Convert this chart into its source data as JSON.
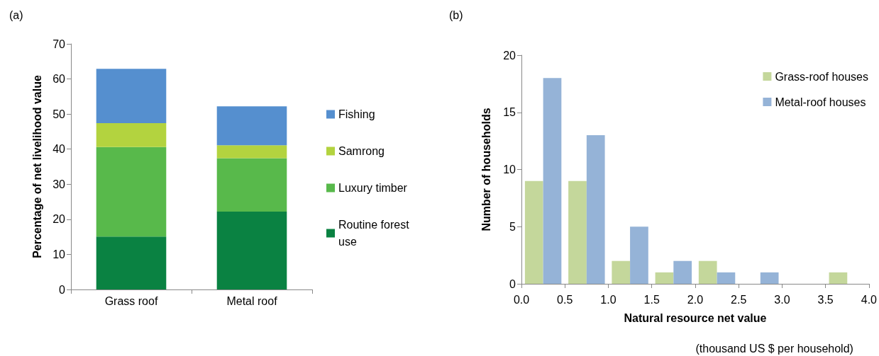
{
  "chart_data": [
    {
      "type": "bar",
      "title": "(a)",
      "ylabel": "Percentage of net livelihood value",
      "categories": [
        "Grass roof",
        "Metal roof"
      ],
      "stacked": true,
      "series": [
        {
          "name": "Routine forest use",
          "color": "#0a8242",
          "values": [
            15.1,
            22.2
          ]
        },
        {
          "name": "Luxury timber",
          "color": "#58b94b",
          "values": [
            25.5,
            15.2
          ]
        },
        {
          "name": "Samrong",
          "color": "#b3d33f",
          "values": [
            6.8,
            3.7
          ]
        },
        {
          "name": "Fishing",
          "color": "#558fcf",
          "values": [
            15.5,
            11.1
          ]
        }
      ],
      "ylim": [
        0,
        70
      ],
      "yticks": [
        0,
        10,
        20,
        30,
        40,
        50,
        60,
        70
      ],
      "grid": false,
      "legend": "right"
    },
    {
      "type": "histogram",
      "title": "(b)",
      "xlabel": "Natural resource net value",
      "ylabel": "Number of households",
      "annotations": [
        "(thousand US $ per household)"
      ],
      "bins": [
        0,
        0.5,
        1,
        1.5,
        2,
        2.5,
        3,
        3.5,
        4
      ],
      "series": [
        {
          "name": "Grass-roof houses",
          "color": "#c4d79b",
          "values": [
            9,
            9,
            2,
            1,
            2,
            0,
            0,
            1
          ]
        },
        {
          "name": "Metal-roof houses",
          "color": "#95b3d7",
          "values": [
            18,
            13,
            5,
            2,
            1,
            1,
            0,
            0
          ]
        }
      ],
      "xlim": [
        0,
        4
      ],
      "xticks": [
        {
          "value": 0,
          "label": "0.0"
        },
        {
          "value": 0.5,
          "label": "0.5"
        },
        {
          "value": 1,
          "label": "1.0"
        },
        {
          "value": 1.5,
          "label": "1.5"
        },
        {
          "value": 2,
          "label": "2.0"
        },
        {
          "value": 2.5,
          "label": "2.5"
        },
        {
          "value": 3,
          "label": "3.0"
        },
        {
          "value": 3.5,
          "label": "3.5"
        },
        {
          "value": 4,
          "label": "4.0"
        }
      ],
      "ylim": [
        0,
        20
      ],
      "yticks": [
        0,
        5,
        10,
        15,
        20
      ],
      "grid": false,
      "legend": "top right"
    }
  ]
}
